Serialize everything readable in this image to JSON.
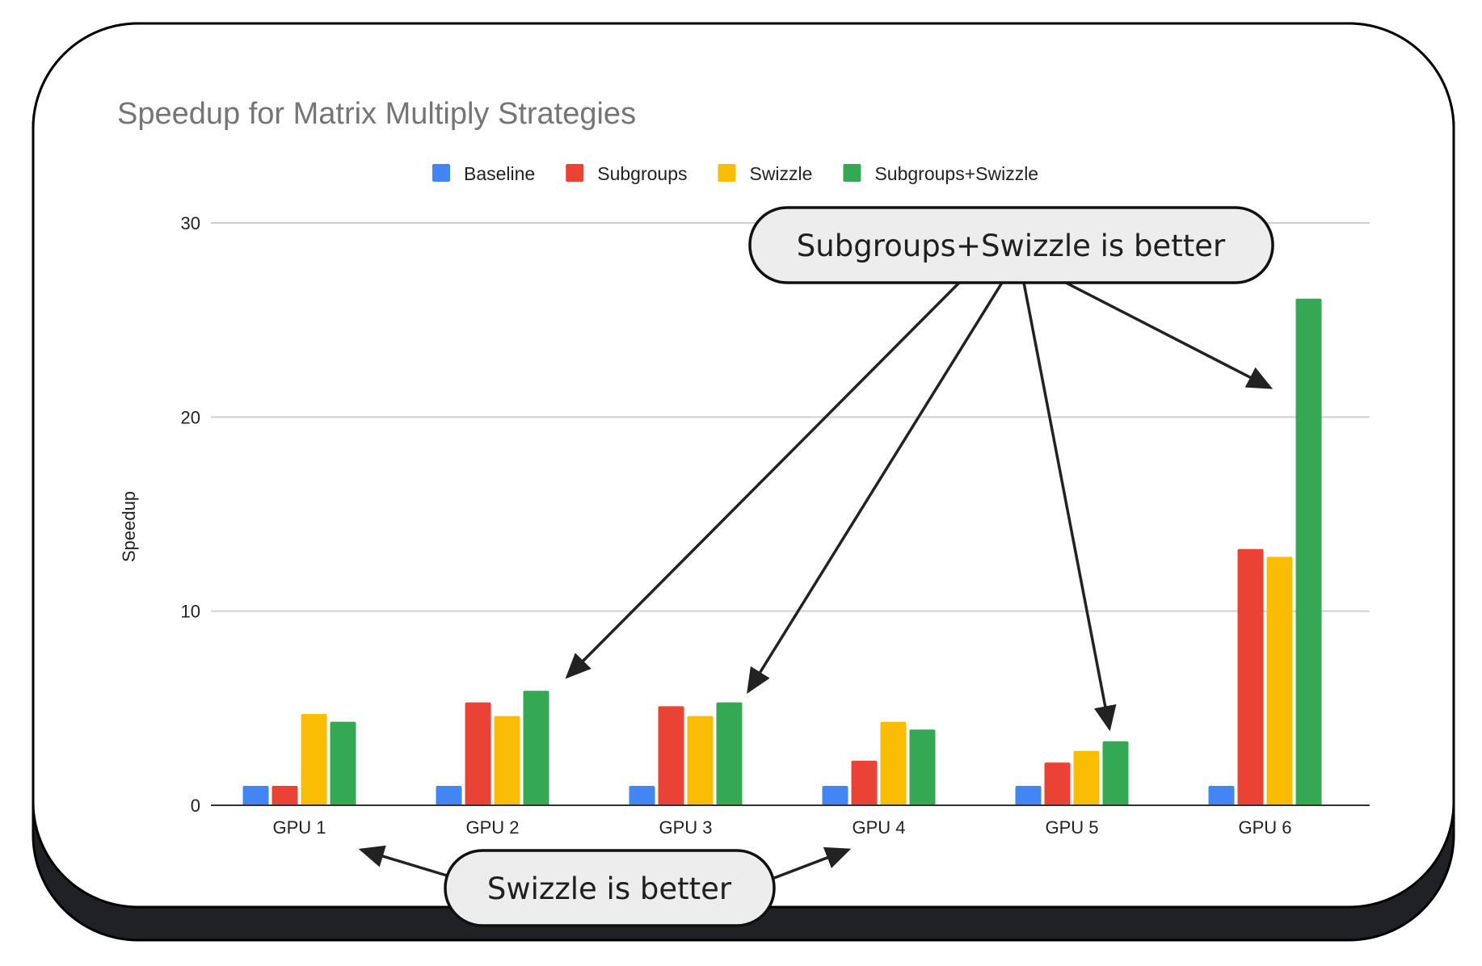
{
  "chart_data": {
    "type": "bar",
    "title": "Speedup for Matrix Multiply Strategies",
    "xlabel": "",
    "ylabel": "Speedup",
    "ylim": [
      0,
      30
    ],
    "yticks": [
      "0",
      "10",
      "20",
      "30"
    ],
    "grid": true,
    "legend_position": "top",
    "categories": [
      "GPU 1",
      "GPU 2",
      "GPU 3",
      "GPU 4",
      "GPU 5",
      "GPU 6"
    ],
    "series": [
      {
        "name": "Baseline",
        "color": "#4285f4",
        "values": [
          1,
          1,
          1,
          1,
          1,
          1
        ]
      },
      {
        "name": "Subgroups",
        "color": "#ea4335",
        "values": [
          1,
          5.3,
          5.1,
          2.3,
          2.2,
          13.2
        ]
      },
      {
        "name": "Swizzle",
        "color": "#fbbc04",
        "values": [
          4.7,
          4.6,
          4.6,
          4.3,
          2.8,
          12.8
        ]
      },
      {
        "name": "Subgroups+Swizzle",
        "color": "#34a853",
        "values": [
          4.3,
          5.9,
          5.3,
          3.9,
          3.3,
          26.1
        ]
      }
    ],
    "annotations": [
      {
        "text": "Subgroups+Swizzle is better",
        "points_to": [
          "GPU 2",
          "GPU 3",
          "GPU 5",
          "GPU 6"
        ]
      },
      {
        "text": "Swizzle is better",
        "points_to": [
          "GPU 1",
          "GPU 4"
        ]
      }
    ]
  }
}
